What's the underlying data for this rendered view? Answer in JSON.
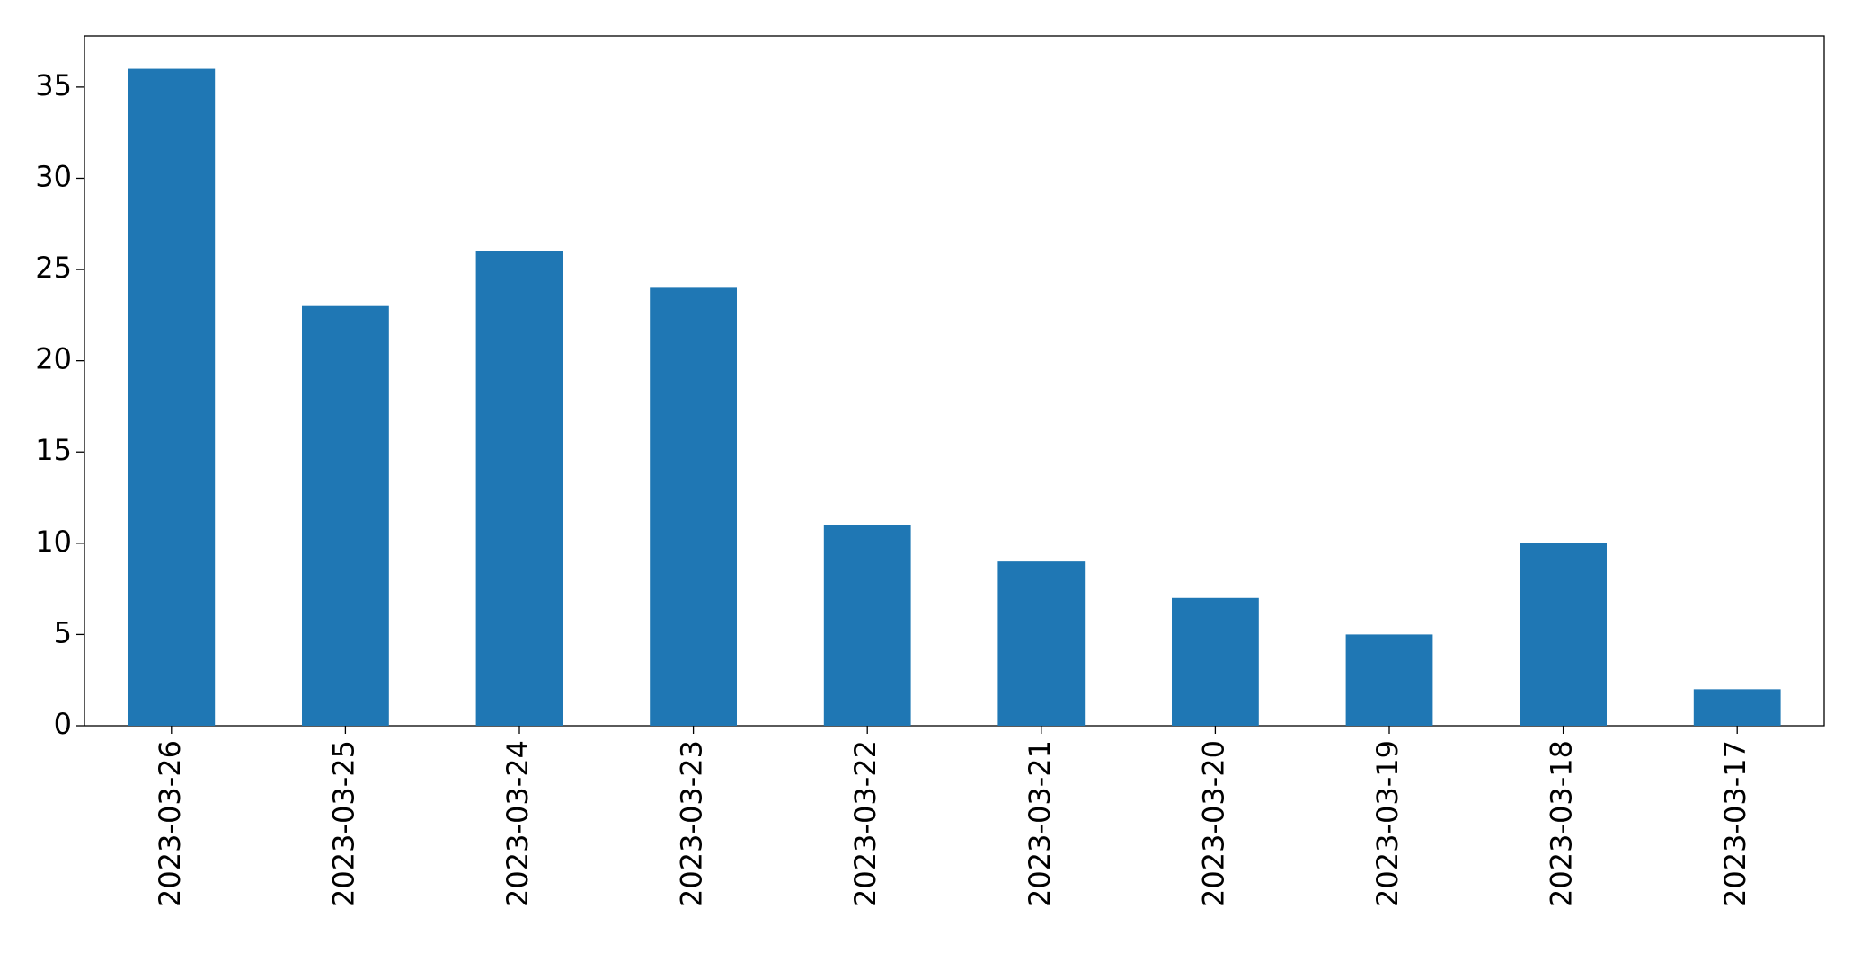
{
  "chart_data": {
    "type": "bar",
    "categories": [
      "2023-03-26",
      "2023-03-25",
      "2023-03-24",
      "2023-03-23",
      "2023-03-22",
      "2023-03-21",
      "2023-03-20",
      "2023-03-19",
      "2023-03-18",
      "2023-03-17"
    ],
    "values": [
      36,
      23,
      26,
      24,
      11,
      9,
      7,
      5,
      10,
      2
    ],
    "color": "#1f77b4",
    "ylim": [
      0,
      37.8
    ],
    "yticks": [
      0,
      5,
      10,
      15,
      20,
      25,
      30,
      35
    ],
    "grid": false
  }
}
